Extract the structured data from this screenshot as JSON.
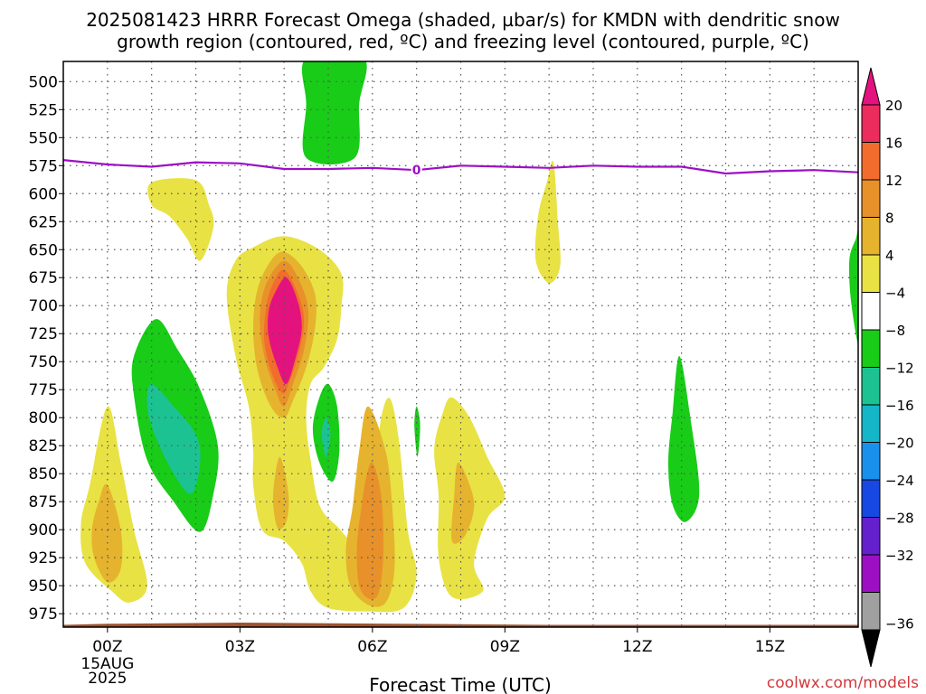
{
  "title_line1": "2025081423 HRRR Forecast Omega (shaded, µbar/s) for KMDN with dendritic snow",
  "title_line2": "growth region (contoured, red, ºC) and freezing level (contoured, purple, ºC)",
  "credit": "coolwx.com/models",
  "chart_data": {
    "type": "contour",
    "xlabel": "Forecast Time (UTC)",
    "x_range_hours": [
      -1,
      17
    ],
    "x_ticks": [
      {
        "hour": 0,
        "label": "00Z",
        "sub": [
          "15AUG",
          "2025"
        ]
      },
      {
        "hour": 3,
        "label": "03Z"
      },
      {
        "hour": 6,
        "label": "06Z"
      },
      {
        "hour": 9,
        "label": "09Z"
      },
      {
        "hour": 12,
        "label": "12Z"
      },
      {
        "hour": 15,
        "label": "15Z"
      }
    ],
    "y_range_hpa": [
      482,
      987
    ],
    "y_ticks": [
      500,
      525,
      550,
      575,
      600,
      625,
      650,
      675,
      700,
      725,
      750,
      775,
      800,
      825,
      850,
      875,
      900,
      925,
      950,
      975
    ],
    "grid": true,
    "colorbar": {
      "labels": [
        "20",
        "16",
        "12",
        "8",
        "4",
        "−4",
        "−8",
        "−12",
        "−16",
        "−20",
        "−24",
        "−28",
        "−32",
        "−36"
      ],
      "colors": [
        "#ec2c5c",
        "#f26d2d",
        "#e8912a",
        "#e6b32e",
        "#e8e244",
        "#ffffff",
        "#18cc18",
        "#1dc292",
        "#14b6c8",
        "#1890ec",
        "#1848e2",
        "#6420cc",
        "#9c10c4",
        "#a0a0a0"
      ],
      "top_arrow_color": "#e4127e",
      "bottom_arrow_color": "#000000"
    },
    "freezing_level": {
      "label": "0",
      "color": "#9c10c4",
      "points": [
        [
          -1,
          570
        ],
        [
          0,
          574
        ],
        [
          1,
          576
        ],
        [
          2,
          572
        ],
        [
          3,
          573
        ],
        [
          4,
          578
        ],
        [
          5,
          578
        ],
        [
          6,
          577
        ],
        [
          7,
          579
        ],
        [
          8,
          575
        ],
        [
          9,
          576
        ],
        [
          10,
          577
        ],
        [
          11,
          575
        ],
        [
          12,
          576
        ],
        [
          13,
          576
        ],
        [
          14,
          582
        ],
        [
          15,
          580
        ],
        [
          16,
          579
        ],
        [
          17,
          581
        ]
      ]
    },
    "terrain": {
      "color": "#a0522d",
      "points": [
        [
          -1,
          985
        ],
        [
          0,
          984
        ],
        [
          3,
          983
        ],
        [
          10,
          985
        ],
        [
          17,
          985
        ]
      ]
    },
    "omega_areas": [
      {
        "name": "Ascent 4.3Z 550 hPa",
        "value": -8,
        "color": "#18cc18",
        "points": [
          [
            4.5,
            479
          ],
          [
            5.8,
            479
          ],
          [
            5.7,
            520
          ],
          [
            5.6,
            568
          ],
          [
            4.5,
            568
          ],
          [
            4.5,
            520
          ]
        ]
      },
      {
        "name": "Ascent 1.7Z 750 hPa",
        "value": -8,
        "color": "#18cc18",
        "points": [
          [
            1.1,
            712
          ],
          [
            1.6,
            740
          ],
          [
            2.1,
            775
          ],
          [
            2.5,
            825
          ],
          [
            2.4,
            868
          ],
          [
            2.1,
            902
          ],
          [
            1.5,
            875
          ],
          [
            0.9,
            838
          ],
          [
            0.6,
            780
          ],
          [
            0.6,
            745
          ]
        ]
      },
      {
        "name": "Ascent 1.7Z 800 hPa core",
        "value": -12,
        "color": "#1dc292",
        "points": [
          [
            1.0,
            770
          ],
          [
            1.5,
            790
          ],
          [
            2.0,
            815
          ],
          [
            2.1,
            840
          ],
          [
            1.9,
            868
          ],
          [
            1.5,
            850
          ],
          [
            1.1,
            818
          ],
          [
            0.9,
            790
          ]
        ]
      },
      {
        "name": "Ascent 5.0Z 800 hPa",
        "value": -8,
        "color": "#18cc18",
        "points": [
          [
            5.0,
            770
          ],
          [
            5.2,
            790
          ],
          [
            5.25,
            830
          ],
          [
            5.1,
            857
          ],
          [
            4.8,
            840
          ],
          [
            4.65,
            810
          ],
          [
            4.8,
            782
          ]
        ]
      },
      {
        "name": "Ascent 5.0Z 815 hPa core",
        "value": -12,
        "color": "#1dc292",
        "points": [
          [
            4.95,
            800
          ],
          [
            5.05,
            815
          ],
          [
            4.95,
            835
          ],
          [
            4.85,
            815
          ]
        ]
      },
      {
        "name": "Ascent 7.0Z 805 hPa",
        "value": -8,
        "color": "#18cc18",
        "points": [
          [
            7.0,
            790
          ],
          [
            7.08,
            807
          ],
          [
            7.02,
            835
          ],
          [
            6.95,
            807
          ]
        ]
      },
      {
        "name": "Ascent 12.9Z 830 hPa",
        "value": -8,
        "color": "#18cc18",
        "points": [
          [
            12.95,
            745
          ],
          [
            13.2,
            800
          ],
          [
            13.4,
            868
          ],
          [
            13.1,
            893
          ],
          [
            12.8,
            878
          ],
          [
            12.7,
            840
          ],
          [
            12.8,
            795
          ]
        ]
      },
      {
        "name": "Ascent 16.9Z 670 hPa",
        "value": -8,
        "color": "#18cc18",
        "points": [
          [
            17.05,
            630
          ],
          [
            17.05,
            735
          ],
          [
            16.85,
            700
          ],
          [
            16.8,
            660
          ],
          [
            16.95,
            640
          ]
        ]
      },
      {
        "name": "Descent 1.2Z 610 hPa",
        "value": 4,
        "color": "#e8e244",
        "points": [
          [
            1.0,
            590
          ],
          [
            2.0,
            588
          ],
          [
            2.3,
            610
          ],
          [
            2.4,
            630
          ],
          [
            2.1,
            660
          ],
          [
            1.8,
            640
          ],
          [
            1.4,
            620
          ],
          [
            1.0,
            610
          ]
        ]
      },
      {
        "name": "Descent 10.0Z 630 hPa",
        "value": 4,
        "color": "#e8e244",
        "points": [
          [
            10.1,
            572
          ],
          [
            10.2,
            625
          ],
          [
            10.25,
            665
          ],
          [
            10.0,
            680
          ],
          [
            9.7,
            660
          ],
          [
            9.75,
            620
          ],
          [
            9.95,
            590
          ]
        ]
      },
      {
        "name": "Descent 0.0Z 880 hPa",
        "value": 4,
        "color": "#e8e244",
        "points": [
          [
            0.0,
            790
          ],
          [
            0.3,
            840
          ],
          [
            0.6,
            900
          ],
          [
            0.9,
            950
          ],
          [
            0.5,
            965
          ],
          [
            0.1,
            955
          ],
          [
            -0.5,
            930
          ],
          [
            -0.6,
            895
          ],
          [
            -0.4,
            860
          ]
        ]
      },
      {
        "name": "Descent 0.0Z 905 hPa core",
        "value": 8,
        "color": "#e6b32e",
        "points": [
          [
            0.0,
            860
          ],
          [
            0.3,
            900
          ],
          [
            0.3,
            935
          ],
          [
            0.0,
            947
          ],
          [
            -0.3,
            925
          ],
          [
            -0.35,
            900
          ],
          [
            -0.2,
            875
          ]
        ]
      },
      {
        "name": "Descent 4Z-6.5Z 720-970 hPa",
        "value": 4,
        "color": "#e8e244",
        "points": [
          [
            4.0,
            638
          ],
          [
            4.8,
            650
          ],
          [
            5.3,
            672
          ],
          [
            5.3,
            700
          ],
          [
            5.2,
            730
          ],
          [
            4.9,
            755
          ],
          [
            4.6,
            770
          ],
          [
            4.5,
            800
          ],
          [
            4.6,
            838
          ],
          [
            4.8,
            878
          ],
          [
            5.2,
            897
          ],
          [
            5.6,
            907
          ],
          [
            6.0,
            862
          ],
          [
            6.2,
            800
          ],
          [
            6.4,
            783
          ],
          [
            6.6,
            820
          ],
          [
            6.8,
            900
          ],
          [
            7.0,
            940
          ],
          [
            6.7,
            970
          ],
          [
            5.9,
            973
          ],
          [
            5.0,
            970
          ],
          [
            4.6,
            955
          ],
          [
            4.4,
            930
          ],
          [
            4.0,
            910
          ],
          [
            3.5,
            900
          ],
          [
            3.3,
            860
          ],
          [
            3.3,
            830
          ],
          [
            3.2,
            790
          ],
          [
            2.9,
            745
          ],
          [
            2.7,
            690
          ],
          [
            2.9,
            660
          ],
          [
            3.3,
            648
          ]
        ]
      },
      {
        "name": "Descent 4Z 700 hPa band",
        "value": 8,
        "color": "#e6b32e",
        "points": [
          [
            4.0,
            652
          ],
          [
            4.4,
            665
          ],
          [
            4.7,
            690
          ],
          [
            4.7,
            720
          ],
          [
            4.5,
            755
          ],
          [
            4.2,
            785
          ],
          [
            4.0,
            800
          ],
          [
            3.7,
            790
          ],
          [
            3.4,
            758
          ],
          [
            3.3,
            720
          ],
          [
            3.4,
            685
          ],
          [
            3.7,
            660
          ]
        ]
      },
      {
        "name": "Descent 4Z 705 hPa band 12",
        "value": 12,
        "color": "#e8912a",
        "points": [
          [
            4.0,
            660
          ],
          [
            4.35,
            678
          ],
          [
            4.55,
            705
          ],
          [
            4.45,
            740
          ],
          [
            4.2,
            770
          ],
          [
            4.0,
            790
          ],
          [
            3.8,
            775
          ],
          [
            3.55,
            745
          ],
          [
            3.45,
            710
          ],
          [
            3.6,
            680
          ]
        ]
      },
      {
        "name": "Descent 4Z 710 hPa band 16",
        "value": 16,
        "color": "#f26d2d",
        "points": [
          [
            4.0,
            668
          ],
          [
            4.3,
            688
          ],
          [
            4.45,
            712
          ],
          [
            4.35,
            740
          ],
          [
            4.1,
            770
          ],
          [
            3.95,
            778
          ],
          [
            3.7,
            758
          ],
          [
            3.55,
            730
          ],
          [
            3.6,
            700
          ],
          [
            3.75,
            680
          ]
        ]
      },
      {
        "name": "Descent 4Z 715 hPa core",
        "value": 20,
        "color": "#e4127e",
        "points": [
          [
            4.05,
            675
          ],
          [
            4.3,
            695
          ],
          [
            4.4,
            720
          ],
          [
            4.25,
            748
          ],
          [
            4.05,
            770
          ],
          [
            3.85,
            755
          ],
          [
            3.65,
            728
          ],
          [
            3.65,
            705
          ],
          [
            3.8,
            688
          ]
        ]
      },
      {
        "name": "Descent 4.0Z 870 hPa",
        "value": 8,
        "color": "#e6b32e",
        "points": [
          [
            3.9,
            835
          ],
          [
            4.1,
            868
          ],
          [
            4.05,
            893
          ],
          [
            3.85,
            898
          ],
          [
            3.75,
            870
          ]
        ]
      },
      {
        "name": "Descent 6Z 900 hPa band",
        "value": 8,
        "color": "#e6b32e",
        "points": [
          [
            5.9,
            790
          ],
          [
            6.3,
            830
          ],
          [
            6.45,
            880
          ],
          [
            6.5,
            935
          ],
          [
            6.3,
            965
          ],
          [
            5.9,
            967
          ],
          [
            5.5,
            950
          ],
          [
            5.4,
            918
          ],
          [
            5.55,
            880
          ],
          [
            5.7,
            830
          ]
        ]
      },
      {
        "name": "Descent 6Z 910 hPa core",
        "value": 12,
        "color": "#e8912a",
        "points": [
          [
            6.0,
            840
          ],
          [
            6.2,
            870
          ],
          [
            6.25,
            920
          ],
          [
            6.15,
            955
          ],
          [
            5.95,
            962
          ],
          [
            5.7,
            950
          ],
          [
            5.65,
            915
          ],
          [
            5.75,
            880
          ],
          [
            5.85,
            855
          ]
        ]
      },
      {
        "name": "Descent 8.0Z 850 hPa",
        "value": 4,
        "color": "#e8e244",
        "points": [
          [
            7.8,
            782
          ],
          [
            8.2,
            800
          ],
          [
            8.6,
            835
          ],
          [
            9.0,
            870
          ],
          [
            8.6,
            890
          ],
          [
            8.3,
            930
          ],
          [
            8.5,
            955
          ],
          [
            7.8,
            960
          ],
          [
            7.5,
            925
          ],
          [
            7.5,
            870
          ],
          [
            7.4,
            828
          ],
          [
            7.6,
            795
          ]
        ]
      },
      {
        "name": "Descent 8.0Z 875 hPa core",
        "value": 8,
        "color": "#e6b32e",
        "points": [
          [
            7.95,
            840
          ],
          [
            8.3,
            875
          ],
          [
            8.1,
            905
          ],
          [
            7.8,
            910
          ],
          [
            7.85,
            870
          ]
        ]
      }
    ]
  }
}
